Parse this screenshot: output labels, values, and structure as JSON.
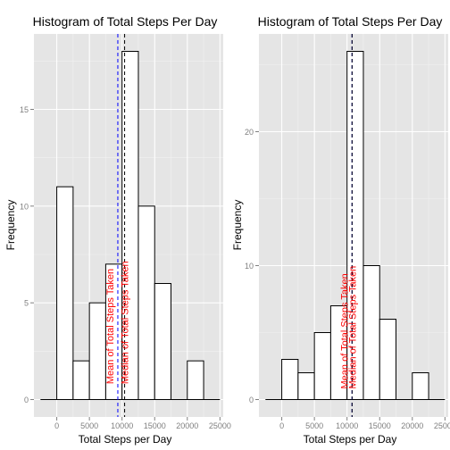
{
  "colors": {
    "panel_bg": "#e5e5e5",
    "grid_major": "#ffffff",
    "grid_minor": "#f2f2f2",
    "bar_fill": "#ffffff",
    "bar_stroke": "#000000",
    "mean_line": "#0000ff",
    "median_line": "#000000",
    "annotation": "#ff0000",
    "axis_text": "#7f7f7f",
    "title_text": "#000000"
  },
  "chart_data": [
    {
      "type": "bar",
      "title": "Histogram of Total Steps Per Day",
      "xlabel": "Total Steps per Day",
      "ylabel": "Frequency",
      "xlim": [
        -3500,
        25500
      ],
      "ylim": [
        -0.9,
        18.9
      ],
      "xticks": [
        0,
        5000,
        10000,
        15000,
        20000,
        25000
      ],
      "xtick_labels": [
        "0",
        "5000",
        "10000",
        "15000",
        "20000",
        "25000"
      ],
      "yticks": [
        0,
        5,
        10,
        15
      ],
      "ytick_labels": [
        "0",
        "5",
        "10",
        "15"
      ],
      "bin_width": 2500,
      "bins": [
        {
          "x0": 0,
          "x1": 2500,
          "count": 11
        },
        {
          "x0": 2500,
          "x1": 5000,
          "count": 2
        },
        {
          "x0": 5000,
          "x1": 7500,
          "count": 5
        },
        {
          "x0": 7500,
          "x1": 10000,
          "count": 7
        },
        {
          "x0": 10000,
          "x1": 12500,
          "count": 18
        },
        {
          "x0": 12500,
          "x1": 15000,
          "count": 10
        },
        {
          "x0": 15000,
          "x1": 17500,
          "count": 6
        },
        {
          "x0": 17500,
          "x1": 20000,
          "count": 0
        },
        {
          "x0": 20000,
          "x1": 22500,
          "count": 2
        }
      ],
      "mean_x": 9354,
      "median_x": 10395,
      "annotations": [
        {
          "label": "Mean of Total Steps Taken",
          "x": 9354
        },
        {
          "label": "Median of Total Steps Taken",
          "x": 10395
        }
      ],
      "grid": true
    },
    {
      "type": "bar",
      "title": "Histogram of Total Steps Per Day",
      "xlabel": "Total Steps per Day",
      "ylabel": "Frequency",
      "xlim": [
        -3500,
        25500
      ],
      "ylim": [
        -1.3,
        27.3
      ],
      "xticks": [
        0,
        5000,
        10000,
        15000,
        20000,
        25000
      ],
      "xtick_labels": [
        "0",
        "5000",
        "10000",
        "15000",
        "20000",
        "25000"
      ],
      "yticks": [
        0,
        10,
        20
      ],
      "ytick_labels": [
        "0",
        "10",
        "20"
      ],
      "bin_width": 2500,
      "bins": [
        {
          "x0": 0,
          "x1": 2500,
          "count": 3
        },
        {
          "x0": 2500,
          "x1": 5000,
          "count": 2
        },
        {
          "x0": 5000,
          "x1": 7500,
          "count": 5
        },
        {
          "x0": 7500,
          "x1": 10000,
          "count": 7
        },
        {
          "x0": 10000,
          "x1": 12500,
          "count": 26
        },
        {
          "x0": 12500,
          "x1": 15000,
          "count": 10
        },
        {
          "x0": 15000,
          "x1": 17500,
          "count": 6
        },
        {
          "x0": 17500,
          "x1": 20000,
          "count": 0
        },
        {
          "x0": 20000,
          "x1": 22500,
          "count": 2
        }
      ],
      "mean_x": 10766,
      "median_x": 10766,
      "annotations": [
        {
          "label": "Mean of Total Steps Taken",
          "x": 10766
        },
        {
          "label": "Median of Total Steps Taken",
          "x": 10766
        }
      ],
      "grid": true
    }
  ]
}
